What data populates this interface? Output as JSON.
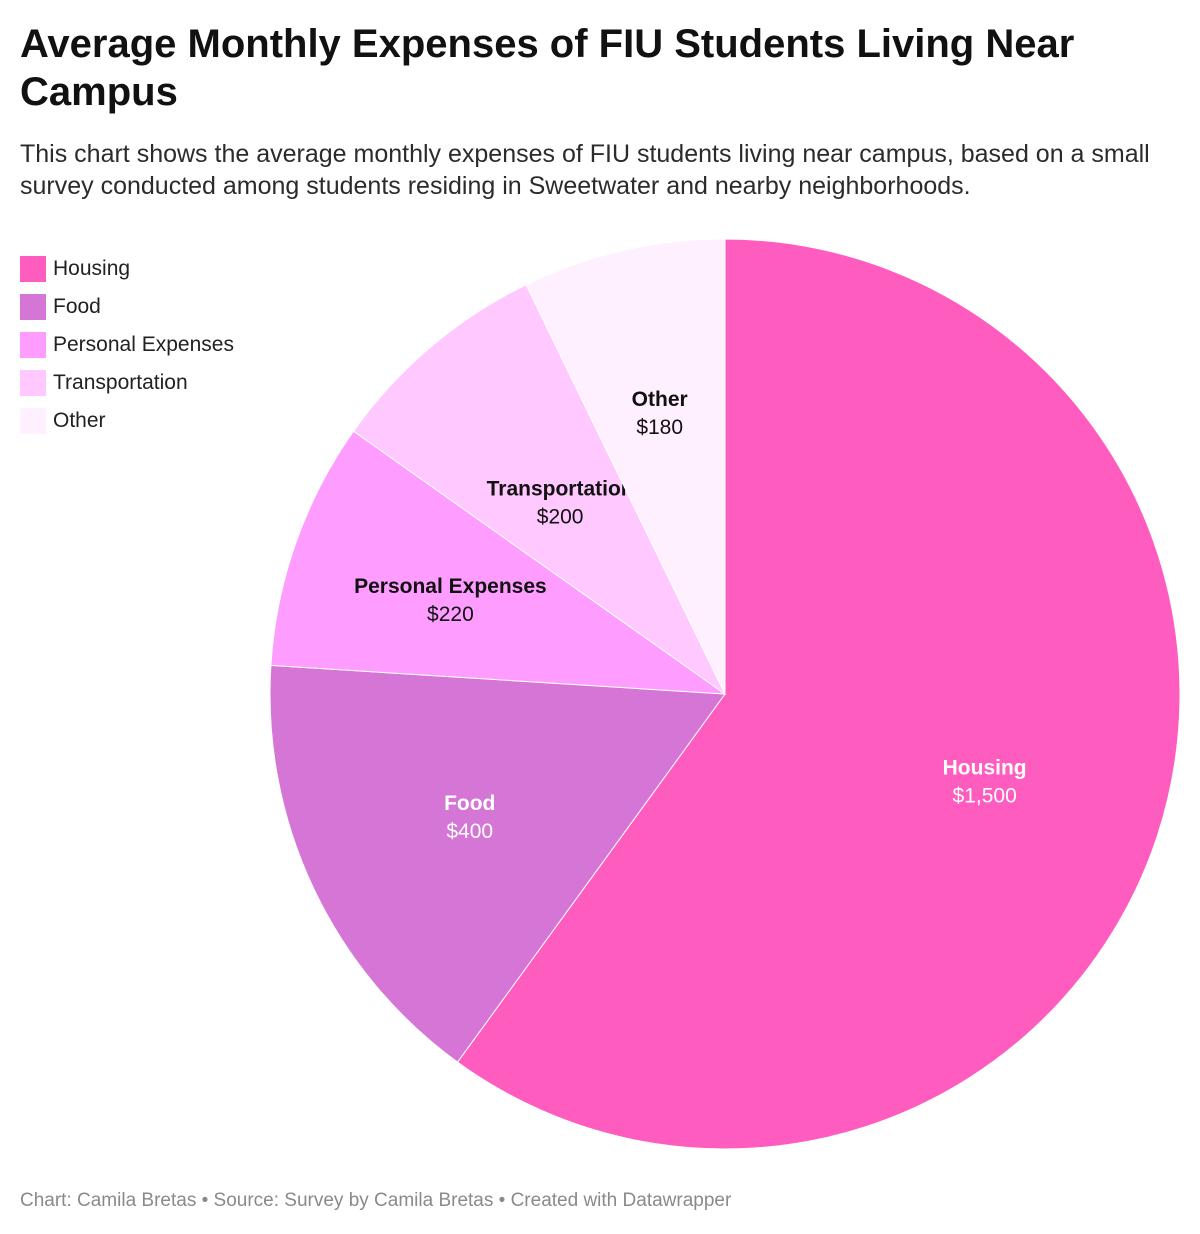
{
  "title": "Average Monthly Expenses of FIU Students Living Near Campus",
  "subtitle": "This chart shows the average monthly expenses of FIU students living near campus, based on a small survey conducted among students residing in Sweetwater and nearby neighborhoods.",
  "footer": "Chart: Camila Bretas • Source: Survey by Camila Bretas • Created with Datawrapper",
  "chart_data": {
    "type": "pie",
    "title": "Average Monthly Expenses of FIU Students Living Near Campus",
    "legend_position": "top-left",
    "slices": [
      {
        "label": "Housing",
        "value": 1500,
        "value_label": "$1,500",
        "color": "#ff5cbf",
        "label_color": "#ffffff"
      },
      {
        "label": "Food",
        "value": 400,
        "value_label": "$400",
        "color": "#d575d6",
        "label_color": "#ffffff"
      },
      {
        "label": "Personal Expenses",
        "value": 220,
        "value_label": "$220",
        "color": "#ff9cff",
        "label_color": "#111111"
      },
      {
        "label": "Transportation",
        "value": 200,
        "value_label": "$200",
        "color": "#ffc8ff",
        "label_color": "#111111"
      },
      {
        "label": "Other",
        "value": 180,
        "value_label": "$180",
        "color": "#fff0ff",
        "label_color": "#111111"
      }
    ]
  }
}
